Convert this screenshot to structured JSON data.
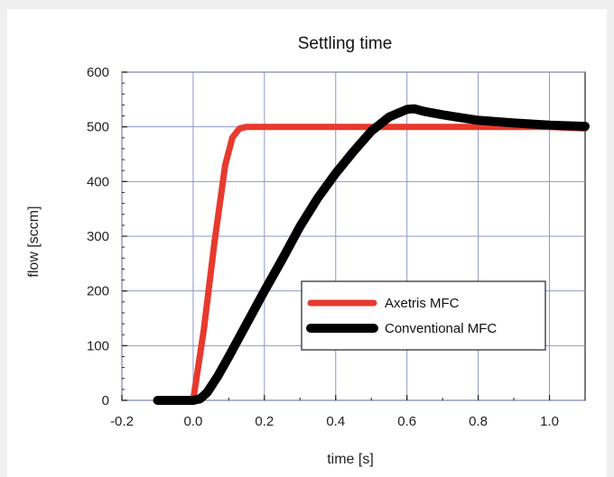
{
  "chart_data": {
    "type": "line",
    "title": "Settling time",
    "xlabel": "time [s]",
    "ylabel": "flow [sccm]",
    "xlim": [
      -0.2,
      1.1
    ],
    "ylim": [
      0,
      600
    ],
    "xticks": [
      "-0.2",
      "0.0",
      "0.2",
      "0.4",
      "0.6",
      "0.8",
      "1.0"
    ],
    "yticks": [
      "0",
      "100",
      "200",
      "300",
      "400",
      "500",
      "600"
    ],
    "grid": true,
    "legend_position": "lower-right",
    "series": [
      {
        "name": "Axetris MFC",
        "color": "#e8392d",
        "x": [
          0.0,
          0.03,
          0.06,
          0.09,
          0.11,
          0.13,
          0.15,
          0.17,
          0.2,
          0.4,
          0.6,
          0.8,
          1.0,
          1.1
        ],
        "y": [
          0,
          130,
          290,
          430,
          480,
          497,
          500,
          500,
          500,
          500,
          500,
          500,
          500,
          497
        ]
      },
      {
        "name": "Conventional MFC",
        "color": "#000000",
        "x": [
          -0.1,
          -0.05,
          0.0,
          0.02,
          0.04,
          0.07,
          0.1,
          0.15,
          0.2,
          0.25,
          0.3,
          0.35,
          0.4,
          0.45,
          0.5,
          0.55,
          0.6,
          0.62,
          0.65,
          0.7,
          0.75,
          0.8,
          0.9,
          1.0,
          1.1
        ],
        "y": [
          0,
          0,
          0,
          3,
          15,
          45,
          80,
          140,
          200,
          258,
          318,
          370,
          415,
          455,
          492,
          518,
          532,
          533,
          528,
          522,
          517,
          512,
          507,
          503,
          501
        ]
      }
    ]
  }
}
